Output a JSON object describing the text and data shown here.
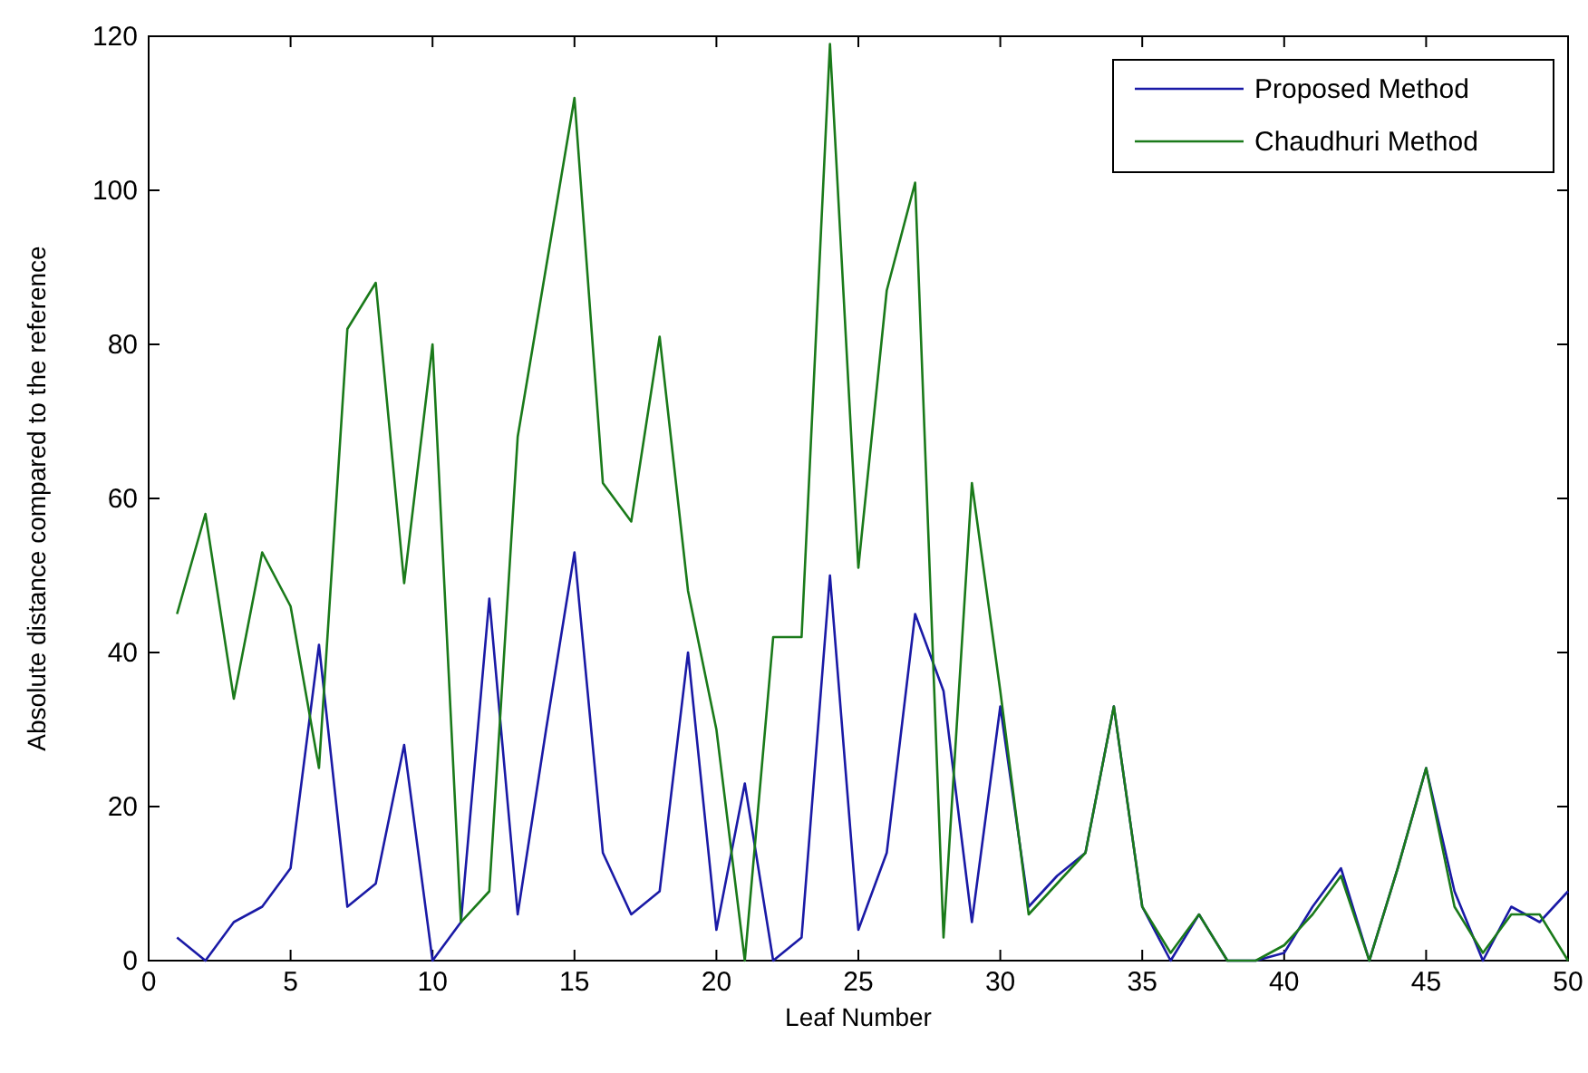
{
  "chart_data": {
    "type": "line",
    "xlabel": "Leaf Number",
    "ylabel": "Absolute distance compared to the reference",
    "x": [
      1,
      2,
      3,
      4,
      5,
      6,
      7,
      8,
      9,
      10,
      11,
      12,
      13,
      14,
      15,
      16,
      17,
      18,
      19,
      20,
      21,
      22,
      23,
      24,
      25,
      26,
      27,
      28,
      29,
      30,
      31,
      32,
      33,
      34,
      35,
      36,
      37,
      38,
      39,
      40,
      41,
      42,
      43,
      44,
      45,
      46,
      47,
      48,
      49,
      50
    ],
    "series": [
      {
        "name": "Proposed Method",
        "color": "#1a1aa6",
        "values": [
          3,
          0,
          5,
          7,
          12,
          41,
          7,
          10,
          28,
          0,
          5,
          47,
          6,
          30,
          53,
          14,
          6,
          9,
          40,
          4,
          23,
          0,
          3,
          50,
          4,
          14,
          45,
          35,
          5,
          33,
          7,
          11,
          14,
          33,
          7,
          0,
          6,
          0,
          0,
          1,
          7,
          12,
          0,
          12,
          25,
          9,
          0,
          7,
          5,
          9
        ]
      },
      {
        "name": "Chaudhuri Method",
        "color": "#1a7a1a",
        "values": [
          45,
          58,
          34,
          53,
          46,
          25,
          82,
          88,
          49,
          80,
          5,
          9,
          68,
          90,
          112,
          62,
          57,
          81,
          48,
          30,
          0,
          42,
          42,
          119,
          51,
          87,
          101,
          3,
          62,
          35,
          6,
          10,
          14,
          33,
          7,
          1,
          6,
          0,
          0,
          2,
          6,
          11,
          0,
          12,
          25,
          7,
          1,
          6,
          6,
          0
        ]
      }
    ],
    "xlim": [
      0,
      50
    ],
    "xticks": [
      0,
      5,
      10,
      15,
      20,
      25,
      30,
      35,
      40,
      45,
      50
    ],
    "ylim": [
      0,
      120
    ],
    "yticks": [
      0,
      20,
      40,
      60,
      80,
      100,
      120
    ],
    "legend": "top right",
    "grid": false,
    "line_style": "solid",
    "marker": "none"
  }
}
